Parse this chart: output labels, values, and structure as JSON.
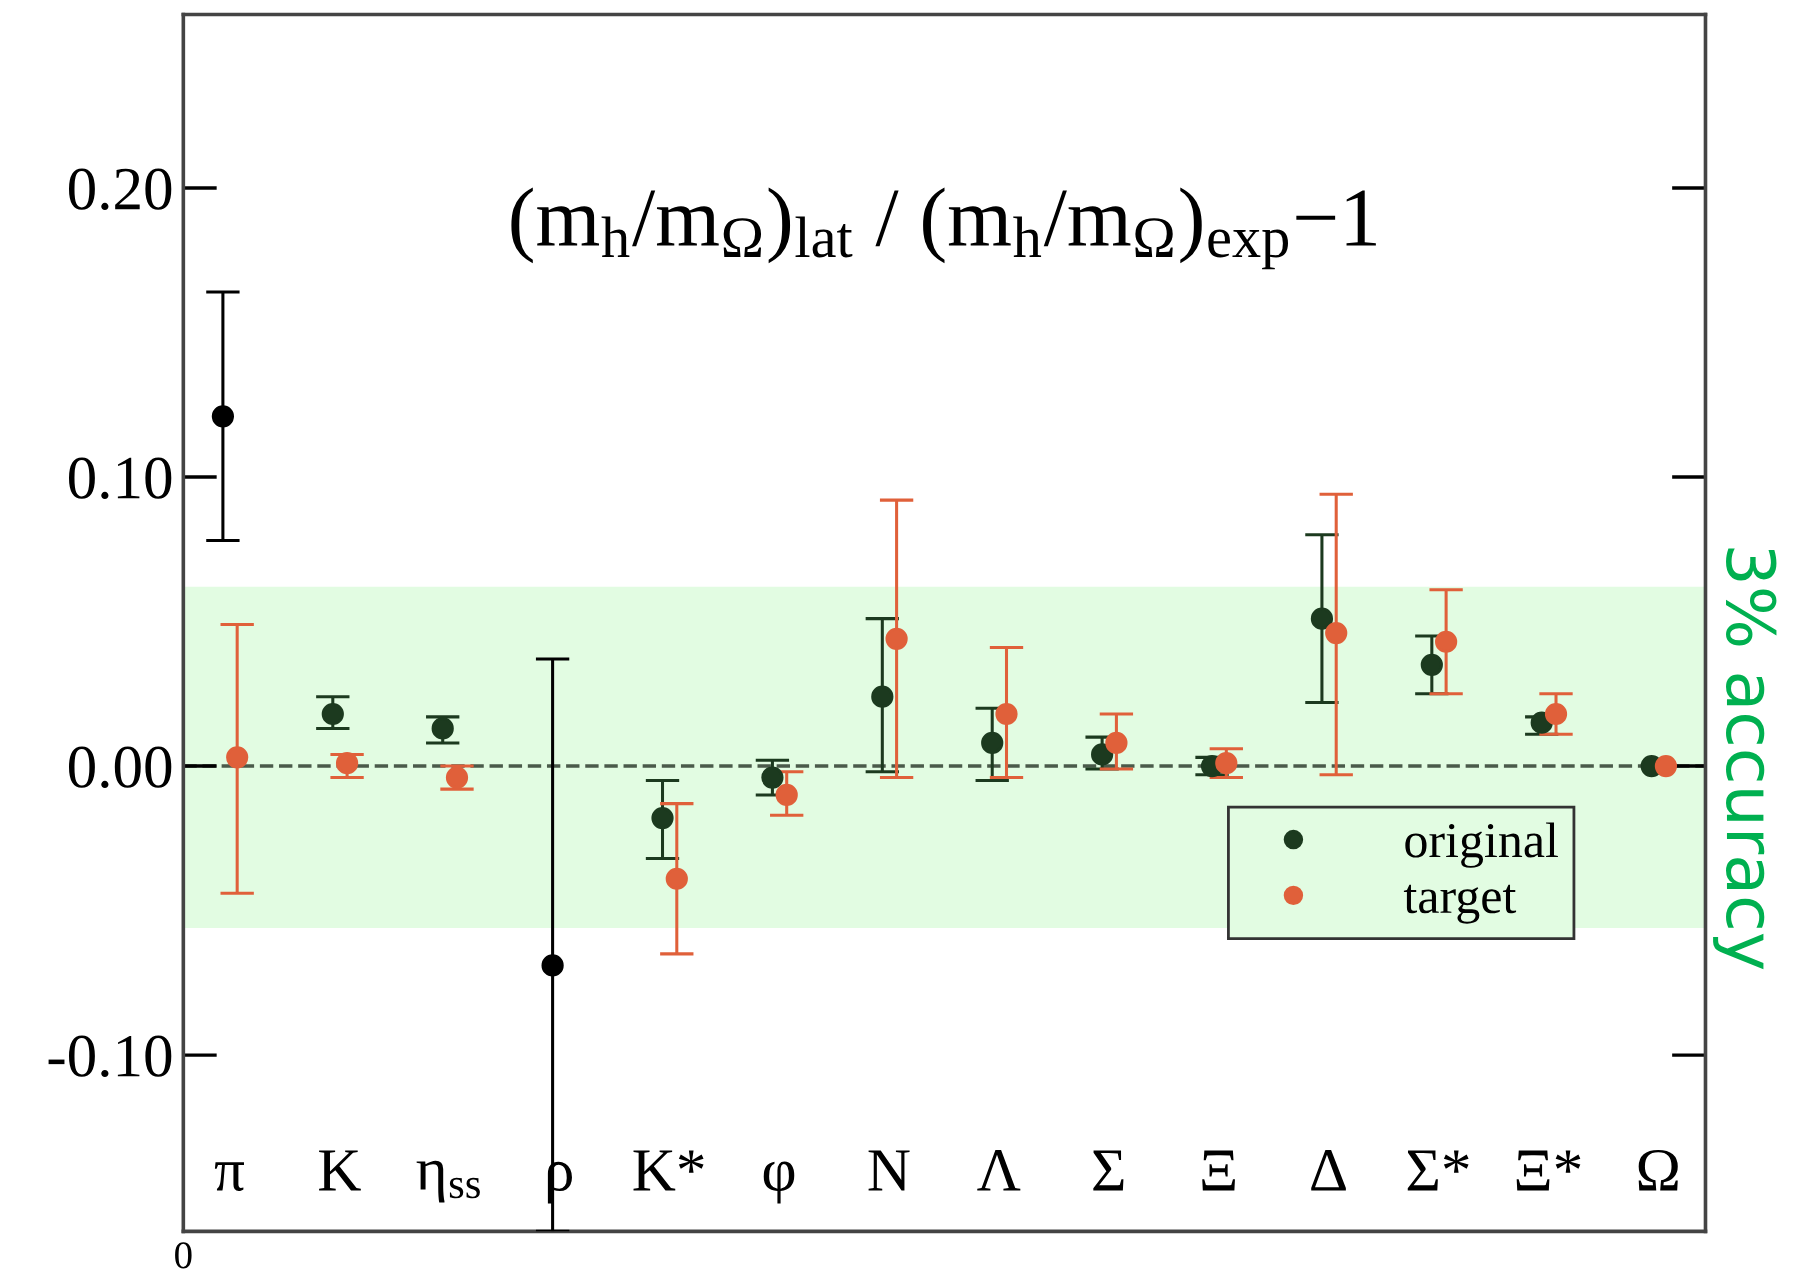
{
  "chart_data": {
    "type": "scatter",
    "title": "(m$_{h}$/m$_{Ω}$)$_{lat}$ / (m$_{h}$/m$_{Ω}$)$_{exp}$−1",
    "categories": [
      "π",
      "K",
      "η$_{ss}$",
      "ρ",
      "K*",
      "φ",
      "N",
      "Λ",
      "Σ",
      "Ξ",
      "Δ",
      "Σ*",
      "Ξ*",
      "Ω"
    ],
    "series": [
      {
        "name": "original",
        "color": "#1c3a1f",
        "colors": [
          "#000000",
          "#1c3a1f",
          "#1c3a1f",
          "#000000",
          "#1c3a1f",
          "#1c3a1f",
          "#1c3a1f",
          "#1c3a1f",
          "#1c3a1f",
          "#1c3a1f",
          "#1c3a1f",
          "#1c3a1f",
          "#1c3a1f",
          "#1c3a1f"
        ],
        "values": [
          0.121,
          0.018,
          0.013,
          -0.069,
          -0.018,
          -0.004,
          0.024,
          0.008,
          0.004,
          0.0,
          0.051,
          0.035,
          0.015,
          0.0
        ],
        "errors": [
          [
            0.078,
            0.164
          ],
          [
            0.013,
            0.024
          ],
          [
            0.008,
            0.017
          ],
          [
            -0.161,
            0.037
          ],
          [
            -0.032,
            -0.005
          ],
          [
            -0.01,
            0.002
          ],
          [
            -0.002,
            0.051
          ],
          [
            -0.005,
            0.02
          ],
          [
            -0.001,
            0.01
          ],
          [
            -0.003,
            0.003
          ],
          [
            0.022,
            0.08
          ],
          [
            0.025,
            0.045
          ],
          [
            0.011,
            0.017
          ],
          null
        ]
      },
      {
        "name": "target",
        "color": "#e0603a",
        "values": [
          0.003,
          0.001,
          -0.004,
          null,
          -0.039,
          -0.01,
          0.044,
          0.018,
          0.008,
          0.001,
          0.046,
          0.043,
          0.018,
          0.0
        ],
        "errors": [
          [
            -0.044,
            0.049
          ],
          [
            -0.004,
            0.004
          ],
          [
            -0.008,
            0.0
          ],
          null,
          [
            -0.065,
            -0.013
          ],
          [
            -0.017,
            -0.002
          ],
          [
            -0.004,
            0.092
          ],
          [
            -0.004,
            0.041
          ],
          [
            -0.001,
            0.018
          ],
          [
            -0.004,
            0.006
          ],
          [
            -0.003,
            0.094
          ],
          [
            0.025,
            0.061
          ],
          [
            0.011,
            0.025
          ],
          null
        ]
      }
    ],
    "ylim": [
      -0.161,
      0.26
    ],
    "yticks": [
      {
        "value": -0.1,
        "label": "-0.10"
      },
      {
        "value": 0,
        "label": "0.00"
      },
      {
        "value": 0.1,
        "label": "0.10"
      },
      {
        "value": 0.2,
        "label": "0.20"
      }
    ],
    "ref_lines": [
      {
        "axis": "y",
        "value": 0,
        "label": null,
        "color": "#4a5a4a",
        "line_style": "dashed"
      }
    ],
    "bands": [
      {
        "axis": "y",
        "from": -0.056,
        "to": 0.062,
        "label": "3% accuracy",
        "color": "#e2fce2"
      }
    ],
    "xlabel": "0",
    "marker": "circle",
    "legend": "bottom right",
    "grid": false
  }
}
